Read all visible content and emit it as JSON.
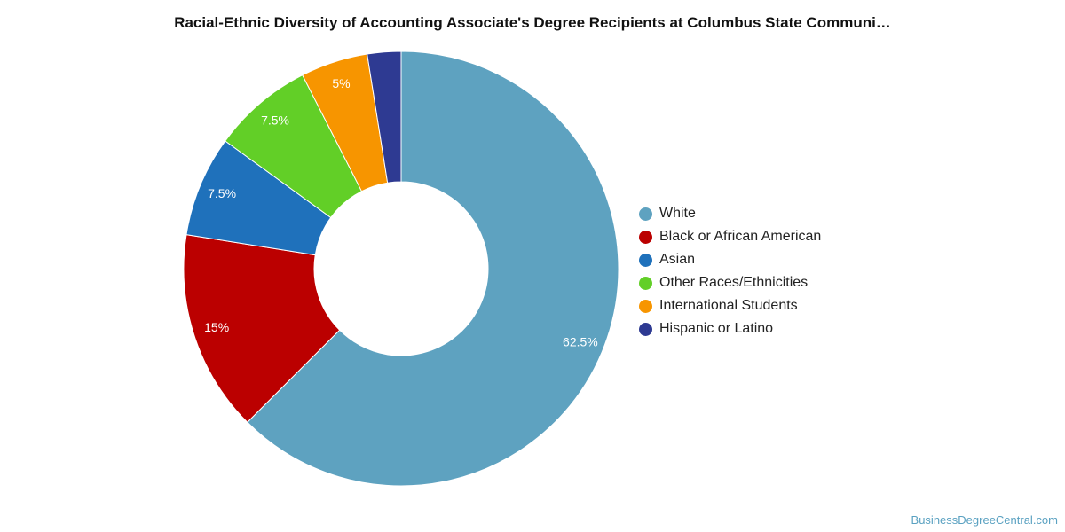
{
  "title": "Racial-Ethnic Diversity of Accounting Associate's Degree Recipients at Columbus State Communi…",
  "chart_data": {
    "type": "pie",
    "donut": true,
    "title": "Racial-Ethnic Diversity of Accounting Associate's Degree Recipients at Columbus State Communi…",
    "legend_position": "right",
    "slices": [
      {
        "name": "White",
        "value": 62.5,
        "label": "62.5%",
        "color": "#5ea2c0"
      },
      {
        "name": "Black or African American",
        "value": 15,
        "label": "15%",
        "color": "#bb0000"
      },
      {
        "name": "Asian",
        "value": 7.5,
        "label": "7.5%",
        "color": "#1f71bb"
      },
      {
        "name": "Other Races/Ethnicities",
        "value": 7.5,
        "label": "7.5%",
        "color": "#62cf27"
      },
      {
        "name": "International Students",
        "value": 5,
        "label": "5%",
        "color": "#f79500"
      },
      {
        "name": "Hispanic or Latino",
        "value": 2.5,
        "label": "",
        "color": "#2e3a92"
      }
    ]
  },
  "watermark": "BusinessDegreeCentral.com"
}
